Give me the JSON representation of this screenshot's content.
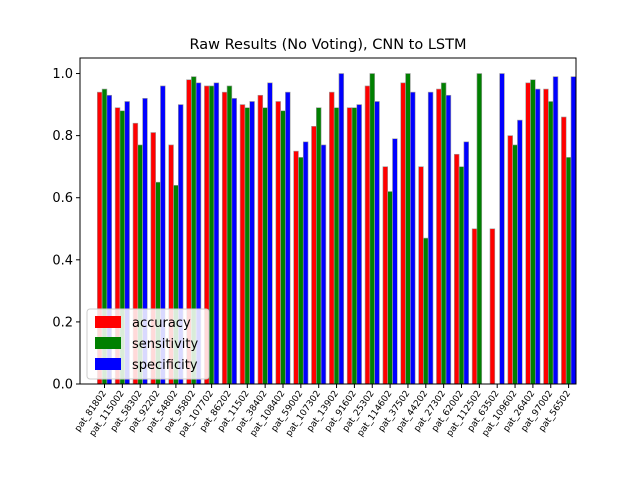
{
  "chart_data": {
    "type": "bar",
    "title": "Raw Results (No Voting), CNN to LSTM",
    "xlabel": "",
    "ylabel": "",
    "ylim": [
      0,
      1.05
    ],
    "yticks": [
      "0.0",
      "0.2",
      "0.4",
      "0.6",
      "0.8",
      "1.0"
    ],
    "grid": false,
    "legend_position": "lower-left",
    "categories": [
      "pat_81802",
      "pat_115002",
      "pat_58302",
      "pat_92202",
      "pat_54802",
      "pat_95802",
      "pat_107702",
      "pat_86202",
      "pat_11502",
      "pat_38402",
      "pat_108402",
      "pat_59002",
      "pat_107302",
      "pat_13902",
      "pat_91602",
      "pat_25302",
      "pat_114602",
      "pat_37502",
      "pat_44202",
      "pat_27302",
      "pat_62002",
      "pat_112502",
      "pat_63502",
      "pat_109602",
      "pat_26402",
      "pat_97002",
      "pat_56502"
    ],
    "series": [
      {
        "name": "accuracy",
        "color": "#ff0000",
        "values": [
          0.94,
          0.89,
          0.84,
          0.81,
          0.77,
          0.98,
          0.96,
          0.94,
          0.9,
          0.93,
          0.91,
          0.75,
          0.83,
          0.94,
          0.89,
          0.96,
          0.7,
          0.97,
          0.7,
          0.95,
          0.74,
          0.5,
          0.5,
          0.8,
          0.97,
          0.95,
          0.86
        ]
      },
      {
        "name": "sensitivity",
        "color": "#008000",
        "values": [
          0.95,
          0.88,
          0.77,
          0.65,
          0.64,
          0.99,
          0.96,
          0.96,
          0.89,
          0.89,
          0.88,
          0.73,
          0.89,
          0.89,
          0.89,
          1.0,
          0.62,
          1.0,
          0.47,
          0.97,
          0.7,
          1.0,
          0.0,
          0.77,
          0.98,
          0.91,
          0.73
        ]
      },
      {
        "name": "specificity",
        "color": "#0000ff",
        "values": [
          0.93,
          0.91,
          0.92,
          0.96,
          0.9,
          0.97,
          0.97,
          0.92,
          0.91,
          0.97,
          0.94,
          0.78,
          0.77,
          1.0,
          0.9,
          0.91,
          0.79,
          0.94,
          0.94,
          0.93,
          0.78,
          0.0,
          1.0,
          0.85,
          0.95,
          0.99,
          0.99
        ]
      }
    ]
  }
}
